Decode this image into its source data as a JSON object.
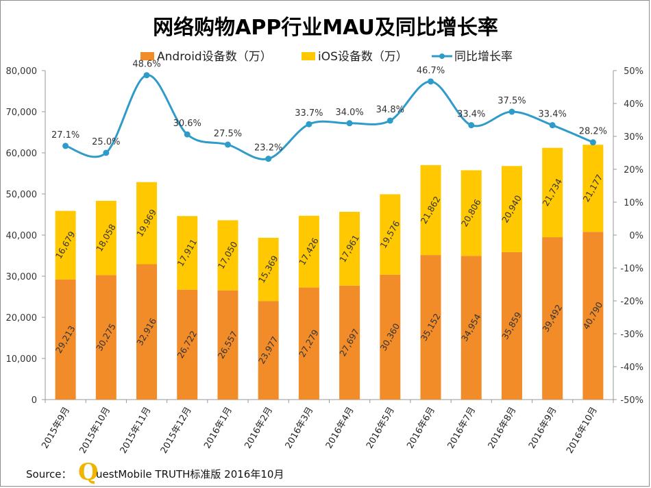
{
  "chart_data": {
    "type": "bar",
    "stacked": true,
    "title": "网络购物APP行业MAU及同比增长率",
    "categories": [
      "2015年9月",
      "2015年10月",
      "2015年11月",
      "2015年12月",
      "2016年1月",
      "2016年2月",
      "2016年3月",
      "2016年4月",
      "2016年5月",
      "2016年6月",
      "2016年7月",
      "2016年8月",
      "2016年9月",
      "2016年10月"
    ],
    "series": [
      {
        "name": "Android设备数（万）",
        "type": "bar",
        "axis": "left",
        "color": "#f28c28",
        "values": [
          29213,
          30275,
          32916,
          26722,
          26557,
          23977,
          27279,
          27697,
          30360,
          35152,
          34954,
          35859,
          39492,
          40790
        ],
        "labels": [
          "29,213",
          "30,275",
          "32,916",
          "26,722",
          "26,557",
          "23,977",
          "27,279",
          "27,697",
          "30,360",
          "35,152",
          "34,954",
          "35,859",
          "39,492",
          "40,790"
        ]
      },
      {
        "name": "iOS设备数（万）",
        "type": "bar",
        "axis": "left",
        "color": "#ffc800",
        "values": [
          16679,
          18058,
          19969,
          17911,
          17050,
          15369,
          17426,
          17961,
          19576,
          21862,
          20806,
          20940,
          21734,
          21177
        ],
        "labels": [
          "16,679",
          "18,058",
          "19,969",
          "17,911",
          "17,050",
          "15,369",
          "17,426",
          "17,961",
          "19,576",
          "21,862",
          "20,806",
          "20,940",
          "21,734",
          "21,177"
        ]
      },
      {
        "name": "同比增长率",
        "type": "line",
        "axis": "right",
        "color": "#2e9bc9",
        "values": [
          27.1,
          25.0,
          48.6,
          30.6,
          27.5,
          23.2,
          33.7,
          34.0,
          34.8,
          46.7,
          33.4,
          37.5,
          33.4,
          28.2
        ],
        "labels": [
          "27.1%",
          "25.0%",
          "48.6%",
          "30.6%",
          "27.5%",
          "23.2%",
          "33.7%",
          "34.0%",
          "34.8%",
          "46.7%",
          "33.4%",
          "37.5%",
          "33.4%",
          "28.2%"
        ]
      }
    ],
    "y_left": {
      "min": 0,
      "max": 80000,
      "ticks": [
        0,
        10000,
        20000,
        30000,
        40000,
        50000,
        60000,
        70000,
        80000
      ],
      "tick_labels": [
        "0",
        "10,000",
        "20,000",
        "30,000",
        "40,000",
        "50,000",
        "60,000",
        "70,000",
        "80,000"
      ]
    },
    "y_right": {
      "min": -50,
      "max": 50,
      "ticks": [
        -50,
        -40,
        -30,
        -20,
        -10,
        0,
        10,
        20,
        30,
        40,
        50
      ],
      "tick_labels": [
        "-50%",
        "-40%",
        "-30%",
        "-20%",
        "-10%",
        "0%",
        "10%",
        "20%",
        "30%",
        "40%",
        "50%"
      ]
    },
    "legend_position": "top",
    "grid": false
  },
  "source": {
    "prefix": "Source：",
    "logo_letter": "Q",
    "text": "uestMobile TRUTH标准版 2016年10月"
  }
}
